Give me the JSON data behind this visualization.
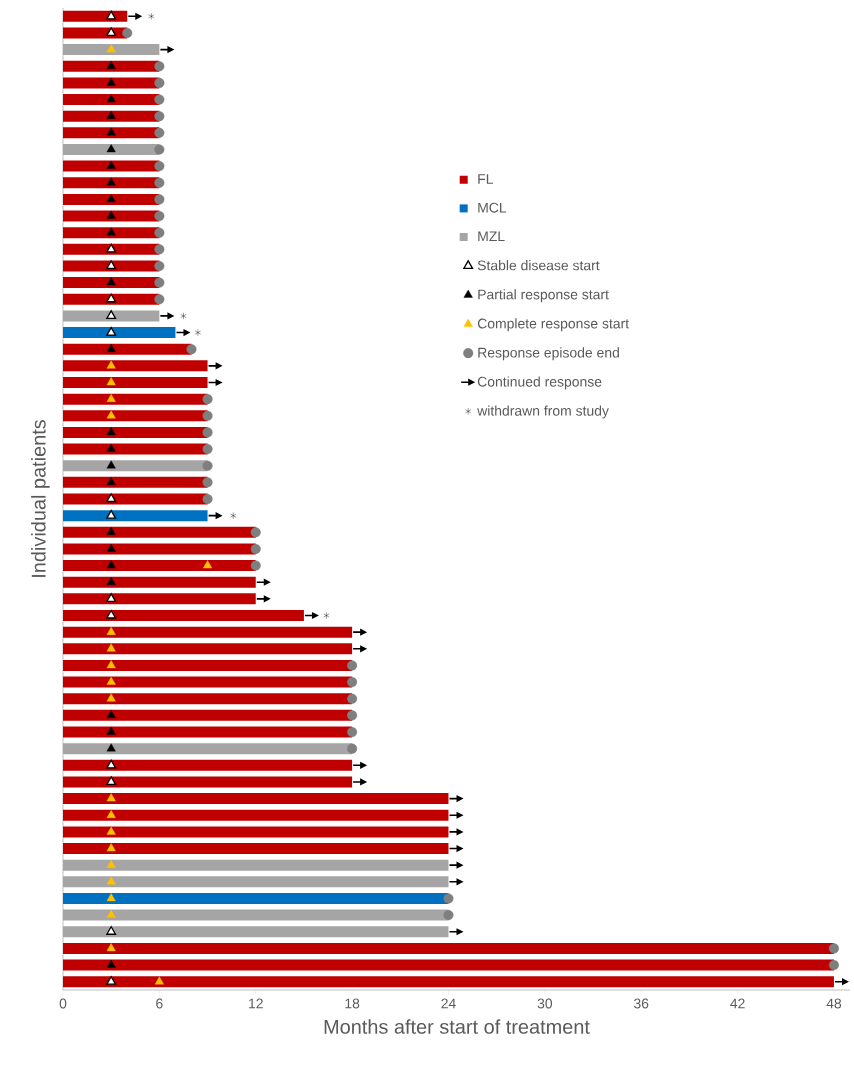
{
  "chart_data": {
    "type": "bar",
    "orientation": "horizontal",
    "categories": [
      null,
      null,
      null,
      null,
      null,
      null,
      null,
      null,
      null,
      null,
      null,
      null,
      null,
      null,
      null,
      null,
      null,
      null,
      null,
      null,
      null,
      null,
      null,
      null,
      null,
      null,
      null,
      null,
      null,
      null,
      null,
      null,
      null,
      null,
      null,
      null,
      null,
      null,
      null,
      null,
      null,
      null,
      null,
      null,
      null,
      null,
      null,
      null,
      null,
      null,
      null,
      null,
      null,
      null,
      null,
      null,
      null,
      null,
      null
    ],
    "xlabel": "Months after start of treatment",
    "ylabel": "Individual patients",
    "xlim": [
      0,
      49
    ],
    "xticks": [
      0,
      6,
      12,
      18,
      24,
      30,
      36,
      42,
      48
    ],
    "tick_labels": "x",
    "legend": "top right",
    "series": [
      {
        "name": "FL",
        "color": "#c00000",
        "values": [
          4,
          4,
          null,
          6,
          6,
          6,
          6,
          6,
          null,
          6,
          6,
          6,
          6,
          6,
          6,
          6,
          6,
          6,
          null,
          null,
          8,
          9,
          9,
          9,
          9,
          9,
          9,
          null,
          9,
          9,
          null,
          12,
          12,
          12,
          12,
          12,
          15,
          18,
          18,
          18,
          18,
          18,
          18,
          18,
          null,
          18,
          18,
          24,
          24,
          24,
          24,
          null,
          null,
          null,
          null,
          null,
          48,
          48,
          48
        ]
      },
      {
        "name": "MCL",
        "color": "#0070c0",
        "values": [
          null,
          null,
          null,
          null,
          null,
          null,
          null,
          null,
          null,
          null,
          null,
          null,
          null,
          null,
          null,
          null,
          null,
          null,
          null,
          7,
          null,
          null,
          null,
          null,
          null,
          null,
          null,
          null,
          null,
          null,
          9,
          null,
          null,
          null,
          null,
          null,
          null,
          null,
          null,
          null,
          null,
          null,
          null,
          null,
          null,
          null,
          null,
          null,
          null,
          null,
          null,
          null,
          null,
          24,
          null,
          null,
          null,
          null,
          null
        ]
      },
      {
        "name": "MZL",
        "color": "#a5a5a5",
        "values": [
          null,
          null,
          6,
          null,
          null,
          null,
          null,
          null,
          6,
          null,
          null,
          null,
          null,
          null,
          null,
          null,
          null,
          null,
          6,
          null,
          null,
          null,
          null,
          null,
          null,
          null,
          null,
          9,
          null,
          null,
          null,
          null,
          null,
          null,
          null,
          null,
          null,
          null,
          null,
          null,
          null,
          null,
          null,
          null,
          18,
          null,
          null,
          null,
          null,
          null,
          null,
          24,
          24,
          null,
          24,
          24,
          null,
          null,
          null
        ]
      },
      {
        "name": "Stable disease start",
        "type": "scatter",
        "marker": "triangle",
        "color": "#ffffff",
        "values": [
          3,
          3,
          null,
          null,
          null,
          null,
          null,
          null,
          null,
          null,
          null,
          null,
          null,
          null,
          3,
          3,
          null,
          3,
          3,
          3,
          null,
          null,
          null,
          null,
          null,
          null,
          null,
          null,
          null,
          3,
          3,
          null,
          null,
          null,
          null,
          3,
          3,
          null,
          null,
          null,
          null,
          null,
          null,
          null,
          null,
          3,
          3,
          null,
          null,
          null,
          null,
          null,
          null,
          null,
          null,
          3,
          null,
          null,
          3
        ]
      },
      {
        "name": "Partial response start",
        "type": "scatter",
        "marker": "triangle",
        "color": "#000000",
        "values": [
          null,
          null,
          null,
          3,
          3,
          3,
          3,
          3,
          3,
          3,
          3,
          3,
          3,
          3,
          null,
          null,
          3,
          null,
          null,
          null,
          3,
          null,
          null,
          null,
          null,
          3,
          3,
          3,
          3,
          null,
          null,
          3,
          3,
          3,
          3,
          null,
          null,
          null,
          null,
          null,
          null,
          null,
          3,
          3,
          3,
          null,
          null,
          null,
          null,
          null,
          null,
          null,
          null,
          null,
          null,
          null,
          null,
          3,
          null
        ]
      },
      {
        "name": "Complete response start",
        "type": "scatter",
        "marker": "triangle",
        "color": "#ffc000",
        "values": [
          null,
          null,
          3,
          null,
          null,
          null,
          null,
          null,
          null,
          null,
          null,
          null,
          null,
          null,
          null,
          null,
          null,
          null,
          null,
          null,
          null,
          3,
          3,
          3,
          3,
          null,
          null,
          null,
          null,
          null,
          null,
          null,
          null,
          9,
          null,
          null,
          null,
          3,
          3,
          3,
          3,
          3,
          null,
          null,
          null,
          null,
          null,
          3,
          3,
          3,
          3,
          3,
          3,
          3,
          3,
          null,
          3,
          null,
          6
        ]
      },
      {
        "name": "Response episode end",
        "type": "scatter",
        "marker": "circle",
        "color": "#7f7f7f",
        "values": [
          null,
          4,
          null,
          6,
          6,
          6,
          6,
          6,
          6,
          6,
          6,
          6,
          6,
          6,
          6,
          6,
          6,
          6,
          null,
          null,
          8,
          null,
          null,
          9,
          9,
          9,
          9,
          9,
          9,
          9,
          null,
          12,
          12,
          12,
          null,
          null,
          null,
          null,
          null,
          18,
          18,
          18,
          18,
          18,
          18,
          null,
          null,
          null,
          null,
          null,
          null,
          null,
          null,
          24,
          24,
          null,
          48,
          48,
          null
        ]
      },
      {
        "name": "Continued response",
        "type": "scatter",
        "color": "#000000",
        "values": [
          4.5,
          null,
          6.5,
          null,
          null,
          null,
          null,
          null,
          null,
          null,
          null,
          null,
          null,
          null,
          null,
          null,
          null,
          null,
          6.5,
          7.5,
          null,
          9.5,
          9.5,
          null,
          null,
          null,
          null,
          null,
          null,
          null,
          9.5,
          null,
          null,
          null,
          12.5,
          12.5,
          15.5,
          18.5,
          18.5,
          null,
          null,
          null,
          null,
          null,
          null,
          18.5,
          18.5,
          24.5,
          24.5,
          24.5,
          24.5,
          24.5,
          24.5,
          null,
          null,
          24.5,
          null,
          null,
          48.5
        ]
      },
      {
        "name": "withdrawn from study",
        "type": "scatter",
        "marker": "cross",
        "color": "#000000",
        "values": [
          5.5,
          null,
          null,
          null,
          null,
          null,
          null,
          null,
          null,
          null,
          null,
          null,
          null,
          null,
          null,
          null,
          null,
          null,
          7.5,
          8.4,
          null,
          null,
          null,
          null,
          null,
          null,
          null,
          null,
          null,
          null,
          10.6,
          null,
          null,
          null,
          null,
          null,
          16.4,
          null,
          null,
          null,
          null,
          null,
          null,
          null,
          null,
          null,
          null,
          null,
          null,
          null,
          null,
          null,
          null,
          null,
          null,
          null,
          null,
          null,
          null
        ]
      }
    ]
  }
}
